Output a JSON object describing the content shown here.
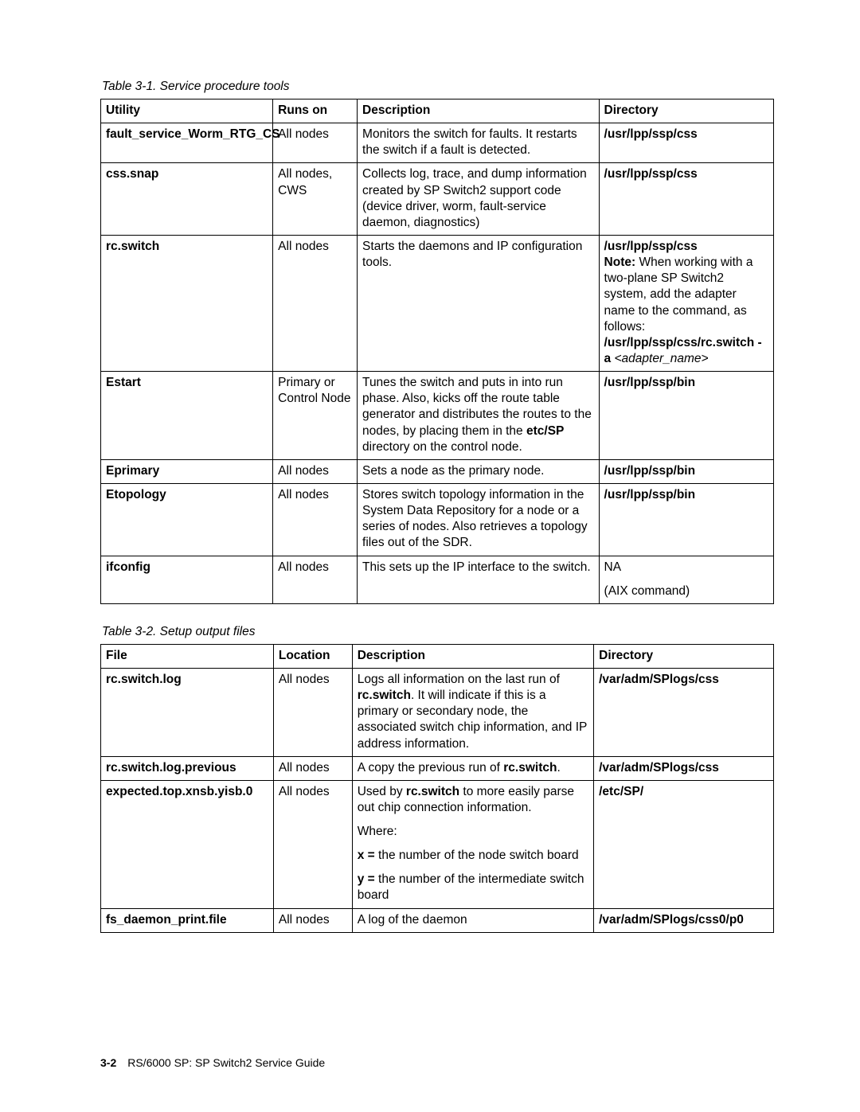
{
  "caption1": "Table 3-1. Service procedure tools",
  "caption2": "Table 3-2. Setup output files",
  "table1": {
    "headers": [
      "Utility",
      "Runs on",
      "Description",
      "Directory"
    ],
    "rows": {
      "r0": {
        "utility": "fault_service_Worm_RTG_CS",
        "runs": "All nodes",
        "desc": "Monitors the switch for faults. It restarts the switch if a fault is detected.",
        "dir": "/usr/lpp/ssp/css"
      },
      "r1": {
        "utility": "css.snap",
        "runs": "All nodes, CWS",
        "desc": "Collects log, trace, and dump information created by SP Switch2 support code (device driver, worm, fault-service daemon, diagnostics)",
        "dir": "/usr/lpp/ssp/css"
      },
      "r2": {
        "utility": "rc.switch",
        "runs": "All nodes",
        "desc": "Starts the daemons and IP configuration tools.",
        "dir_line1": "/usr/lpp/ssp/css",
        "note_label": "Note:",
        "note_text": "  When working with a two-plane SP Switch2 system, add the adapter name to the command, as follows:",
        "dir_line2": "/usr/lpp/ssp/css/rc.switch -a",
        "arg": " <adapter_name>"
      },
      "r3": {
        "utility": "Estart",
        "runs": "Primary or Control Node",
        "desc_a": "Tunes the switch and puts in into run phase. Also, kicks off the route table generator and distributes the routes to the nodes, by placing them in the ",
        "desc_b": "etc/SP",
        "desc_c": " directory on the control node.",
        "dir": "/usr/lpp/ssp/bin"
      },
      "r4": {
        "utility": "Eprimary",
        "runs": "All nodes",
        "desc": "Sets a node as the primary node.",
        "dir": "/usr/lpp/ssp/bin"
      },
      "r5": {
        "utility": "Etopology",
        "runs": "All nodes",
        "desc": "Stores switch topology information in the System Data Repository for a node or a series of nodes. Also retrieves a topology files out of the SDR.",
        "dir": "/usr/lpp/ssp/bin"
      },
      "r6": {
        "utility": "ifconfig",
        "runs": "All nodes",
        "desc": "This sets up the IP interface to the switch.",
        "dir_a": "NA",
        "dir_b": "(AIX command)"
      }
    }
  },
  "table2": {
    "headers": [
      "File",
      "Location",
      "Description",
      "Directory"
    ],
    "rows": {
      "r0": {
        "file": "rc.switch.log",
        "loc": "All nodes",
        "desc_a": "Logs all information on the last run of ",
        "desc_b": "rc.switch",
        "desc_c": ". It will indicate if this is a primary or secondary node, the associated switch chip information, and IP address information.",
        "dir": "/var/adm/SPlogs/css"
      },
      "r1": {
        "file": "rc.switch.log.previous",
        "loc": "All nodes",
        "desc_a": "A copy the previous run of ",
        "desc_b": "rc.switch",
        "desc_c": ".",
        "dir": "/var/adm/SPlogs/css"
      },
      "r2": {
        "file": "expected.top.xnsb.yisb.0",
        "loc": "All nodes",
        "p1a": "Used by ",
        "p1b": "rc.switch",
        "p1c": " to more easily parse out chip connection information.",
        "p2": "Where:",
        "p3a": "x =",
        "p3b": " the number of the node switch board",
        "p4a": "y =",
        "p4b": " the number of the intermediate switch board",
        "dir": "/etc/SP/"
      },
      "r3": {
        "file": "fs_daemon_print.file",
        "loc": "All nodes",
        "desc": "A log of the daemon",
        "dir": "/var/adm/SPlogs/css0/p0"
      }
    }
  },
  "footer": {
    "pgnum": "3-2",
    "text": "RS/6000 SP: SP Switch2 Service Guide"
  }
}
